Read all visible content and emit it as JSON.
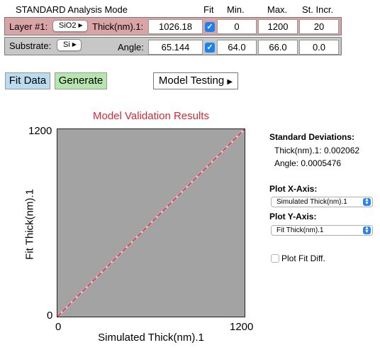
{
  "header": {
    "mode": "STANDARD Analysis Mode",
    "fit": "Fit",
    "min": "Min.",
    "max": "Max.",
    "step": "St. Incr."
  },
  "layer": {
    "label": "Layer #1:",
    "material": "SiO2",
    "param_label": "Thick(nm).1:",
    "value": "1026.18",
    "fit_checked": true,
    "min": "0",
    "max": "1200",
    "step": "20"
  },
  "substrate": {
    "label": "Substrate:",
    "material": "Si",
    "param_label": "Angle:",
    "value": "65.144",
    "fit_checked": true,
    "min": "64.0",
    "max": "66.0",
    "step": "0.0"
  },
  "buttons": {
    "fit_data": "Fit Data",
    "generate": "Generate",
    "model_testing": "Model Testing"
  },
  "colors": {
    "layer_band": "#d8a4a6",
    "substrate_band": "#c7c7c7",
    "fit_button": "#b9dcef",
    "generate_button": "#b6e6ad",
    "chart_title": "#d22a36",
    "plot_background": "#a3a3a3",
    "series_line": "#e23b4a"
  },
  "chart_data": {
    "type": "line",
    "title": "Model Validation Results",
    "xlabel": "Simulated Thick(nm).1",
    "ylabel": "Fit Thick(nm).1",
    "xlim": [
      0,
      1200
    ],
    "ylim": [
      0,
      1200
    ],
    "x_ticks": [
      "0",
      "1200"
    ],
    "y_ticks": [
      "0",
      "1200"
    ],
    "grid": false,
    "series": [
      {
        "x": [
          0,
          300,
          600,
          900,
          1200
        ],
        "y": [
          0,
          300,
          600,
          900,
          1200
        ]
      }
    ]
  },
  "stats": {
    "title": "Standard Deviations:",
    "lines": [
      "Thick(nm).1: 0.002062",
      "Angle: 0.0005476"
    ]
  },
  "plot_x": {
    "label": "Plot X-Axis:",
    "selected": "Simulated Thick(nm).1"
  },
  "plot_y": {
    "label": "Plot Y-Axis:",
    "selected": "Fit Thick(nm).1"
  },
  "plot_fit_diff": {
    "label": "Plot Fit Diff.",
    "checked": false
  }
}
